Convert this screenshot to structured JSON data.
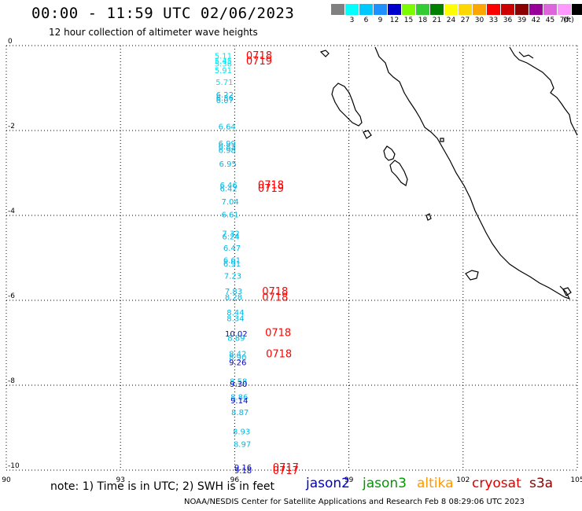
{
  "header": {
    "title": "00:00 - 11:59 UTC 02/06/2023",
    "subtitle": "12 hour collection of altimeter wave heights"
  },
  "legend": {
    "unit": "(ft)",
    "swatches": [
      {
        "color": "#808080",
        "label": ""
      },
      {
        "color": "#00ffff",
        "label": "3"
      },
      {
        "color": "#00c8ff",
        "label": "6"
      },
      {
        "color": "#1e90ff",
        "label": "9"
      },
      {
        "color": "#0000cd",
        "label": "12"
      },
      {
        "color": "#7cfc00",
        "label": "15"
      },
      {
        "color": "#32cd32",
        "label": "18"
      },
      {
        "color": "#008000",
        "label": "21"
      },
      {
        "color": "#ffff00",
        "label": "24"
      },
      {
        "color": "#ffd700",
        "label": "27"
      },
      {
        "color": "#ffa500",
        "label": "30"
      },
      {
        "color": "#ff0000",
        "label": "33"
      },
      {
        "color": "#cc0000",
        "label": "36"
      },
      {
        "color": "#8b0000",
        "label": "39"
      },
      {
        "color": "#990099",
        "label": "42"
      },
      {
        "color": "#dd66dd",
        "label": "45"
      },
      {
        "color": "#ff99ff",
        "label": "70"
      },
      {
        "color": "#000000",
        "label": ""
      }
    ]
  },
  "footer": {
    "note": "note: 1) Time is in UTC; 2) SWH is in feet",
    "satellites": [
      {
        "name": "jason2",
        "color": "#0000cc"
      },
      {
        "name": "jason3",
        "color": "#009900"
      },
      {
        "name": "altika",
        "color": "#ff9900"
      },
      {
        "name": "cryosat",
        "color": "#dd0000"
      },
      {
        "name": "s3a",
        "color": "#880000"
      }
    ],
    "credit": "NOAA/NESDIS Center for Satellite Applications and Research    Feb  8 08:29:06 UTC 2023"
  },
  "chart_data": {
    "type": "scatter",
    "xlim": [
      90,
      105
    ],
    "ylim": [
      -10,
      0
    ],
    "xticks": [
      "90",
      "93",
      "96",
      "99",
      "102",
      "105"
    ],
    "yticks": [
      "0",
      "-2",
      "-4",
      "-6",
      "-8",
      "-10"
    ],
    "grid": true,
    "points": [
      {
        "lon": 95.7,
        "lat": -0.23,
        "value": "5.11",
        "color": "#00e5ee"
      },
      {
        "lon": 95.7,
        "lat": -0.35,
        "value": "5.45",
        "color": "#00e5ee"
      },
      {
        "lon": 95.7,
        "lat": -0.42,
        "value": "5.38",
        "color": "#00e5ee"
      },
      {
        "lon": 95.7,
        "lat": -0.57,
        "value": "5.91",
        "color": "#00e5ee"
      },
      {
        "lon": 95.73,
        "lat": -0.85,
        "value": "5.71",
        "color": "#00e5ee"
      },
      {
        "lon": 95.74,
        "lat": -1.15,
        "value": "6.22",
        "color": "#00b8e6"
      },
      {
        "lon": 95.74,
        "lat": -1.22,
        "value": "6.36",
        "color": "#00b8e6"
      },
      {
        "lon": 95.74,
        "lat": -1.28,
        "value": "6.07",
        "color": "#00b8e6"
      },
      {
        "lon": 95.8,
        "lat": -1.9,
        "value": "6.64",
        "color": "#00b8e6"
      },
      {
        "lon": 95.8,
        "lat": -2.3,
        "value": "6.99",
        "color": "#00b8e6"
      },
      {
        "lon": 95.8,
        "lat": -2.37,
        "value": "6.83",
        "color": "#00b8e6"
      },
      {
        "lon": 95.8,
        "lat": -2.45,
        "value": "6.98",
        "color": "#00b8e6"
      },
      {
        "lon": 95.82,
        "lat": -2.78,
        "value": "6.95",
        "color": "#00b8e6"
      },
      {
        "lon": 95.84,
        "lat": -3.28,
        "value": "6.46",
        "color": "#00b8e6"
      },
      {
        "lon": 95.84,
        "lat": -3.36,
        "value": "6.42",
        "color": "#00b8e6"
      },
      {
        "lon": 95.88,
        "lat": -3.67,
        "value": "7.04",
        "color": "#00b8e6"
      },
      {
        "lon": 95.88,
        "lat": -3.97,
        "value": "6.61",
        "color": "#00b8e6"
      },
      {
        "lon": 95.9,
        "lat": -4.42,
        "value": "7.32",
        "color": "#00b8e6"
      },
      {
        "lon": 95.9,
        "lat": -4.49,
        "value": "6.24",
        "color": "#00b8e6"
      },
      {
        "lon": 95.93,
        "lat": -4.76,
        "value": "6.47",
        "color": "#00b8e6"
      },
      {
        "lon": 95.93,
        "lat": -5.05,
        "value": "6.61",
        "color": "#00b8e6"
      },
      {
        "lon": 95.93,
        "lat": -5.13,
        "value": "6.91",
        "color": "#00b8e6"
      },
      {
        "lon": 95.95,
        "lat": -5.42,
        "value": "7.23",
        "color": "#00b8e6"
      },
      {
        "lon": 95.97,
        "lat": -5.78,
        "value": "7.83",
        "color": "#00b8e6"
      },
      {
        "lon": 95.97,
        "lat": -5.92,
        "value": "8.28",
        "color": "#00b8e6"
      },
      {
        "lon": 96.02,
        "lat": -6.28,
        "value": "8.44",
        "color": "#00b8e6"
      },
      {
        "lon": 96.02,
        "lat": -6.42,
        "value": "8.34",
        "color": "#00b8e6"
      },
      {
        "lon": 96.04,
        "lat": -6.78,
        "value": "10.02",
        "color": "#0000cd"
      },
      {
        "lon": 96.04,
        "lat": -6.88,
        "value": "8.89",
        "color": "#00b8e6"
      },
      {
        "lon": 96.08,
        "lat": -7.25,
        "value": "8.42",
        "color": "#00b8e6"
      },
      {
        "lon": 96.08,
        "lat": -7.33,
        "value": "8.90",
        "color": "#00b8e6"
      },
      {
        "lon": 96.08,
        "lat": -7.45,
        "value": "9.26",
        "color": "#0000cd"
      },
      {
        "lon": 96.1,
        "lat": -7.9,
        "value": "8.58",
        "color": "#00b8e6"
      },
      {
        "lon": 96.1,
        "lat": -7.96,
        "value": "9.30",
        "color": "#0000cd"
      },
      {
        "lon": 96.12,
        "lat": -8.27,
        "value": "8.86",
        "color": "#00b8e6"
      },
      {
        "lon": 96.12,
        "lat": -8.35,
        "value": "9.14",
        "color": "#0000cd"
      },
      {
        "lon": 96.14,
        "lat": -8.63,
        "value": "8.87",
        "color": "#00b8e6"
      },
      {
        "lon": 96.18,
        "lat": -9.08,
        "value": "8.93",
        "color": "#00b8e6"
      },
      {
        "lon": 96.2,
        "lat": -9.38,
        "value": "8.97",
        "color": "#00b8e6"
      },
      {
        "lon": 96.22,
        "lat": -9.93,
        "value": "9.16",
        "color": "#0000cd"
      },
      {
        "lon": 96.22,
        "lat": -10.0,
        "value": "9.18",
        "color": "#0000cd"
      }
    ],
    "time_labels": [
      {
        "lon": 96.3,
        "lat": -0.22,
        "text": "0718",
        "color": "#ff0000"
      },
      {
        "lon": 96.3,
        "lat": -0.35,
        "text": "0719",
        "color": "#ff0000"
      },
      {
        "lon": 96.61,
        "lat": -3.27,
        "text": "0718",
        "color": "#ff0000"
      },
      {
        "lon": 96.61,
        "lat": -3.35,
        "text": "0719",
        "color": "#ff0000"
      },
      {
        "lon": 96.72,
        "lat": -5.78,
        "text": "0718",
        "color": "#ff0000"
      },
      {
        "lon": 96.72,
        "lat": -5.92,
        "text": "0718",
        "color": "#ff0000"
      },
      {
        "lon": 96.8,
        "lat": -6.75,
        "text": "0718",
        "color": "#ff0000"
      },
      {
        "lon": 96.82,
        "lat": -7.25,
        "text": "0718",
        "color": "#ff0000"
      },
      {
        "lon": 97.0,
        "lat": -9.93,
        "text": "0717",
        "color": "#ff0000"
      },
      {
        "lon": 97.0,
        "lat": -10.0,
        "text": "0717",
        "color": "#ff0000"
      }
    ]
  }
}
